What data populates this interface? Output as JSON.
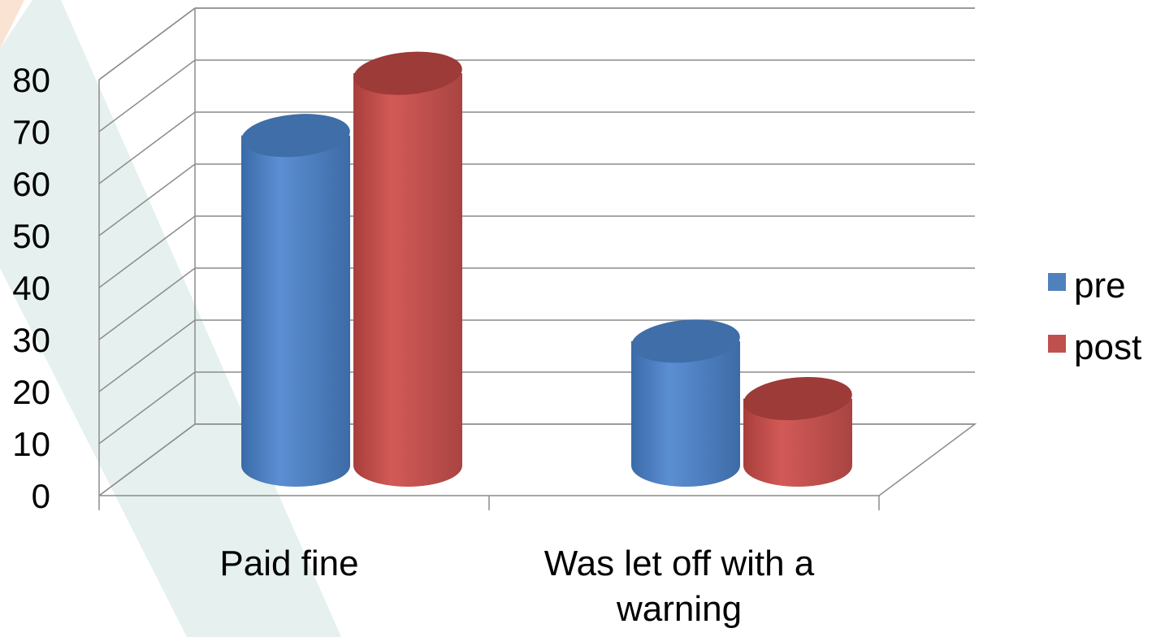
{
  "chart_data": {
    "type": "bar",
    "style": "3d-cylinder",
    "categories": [
      "Paid fine",
      "Was let off with a warning"
    ],
    "category_lines": [
      [
        "Paid fine"
      ],
      [
        "Was let off with a",
        "warning"
      ]
    ],
    "series": [
      {
        "name": "pre",
        "values": [
          69,
          26
        ],
        "color": "#4F81BD"
      },
      {
        "name": "post",
        "values": [
          82,
          14
        ],
        "color": "#C0504D"
      }
    ],
    "ylim": [
      0,
      80
    ],
    "yticks": [
      "0",
      "10",
      "20",
      "30",
      "40",
      "50",
      "60",
      "70",
      "80"
    ],
    "grid": true,
    "legend": "right"
  }
}
